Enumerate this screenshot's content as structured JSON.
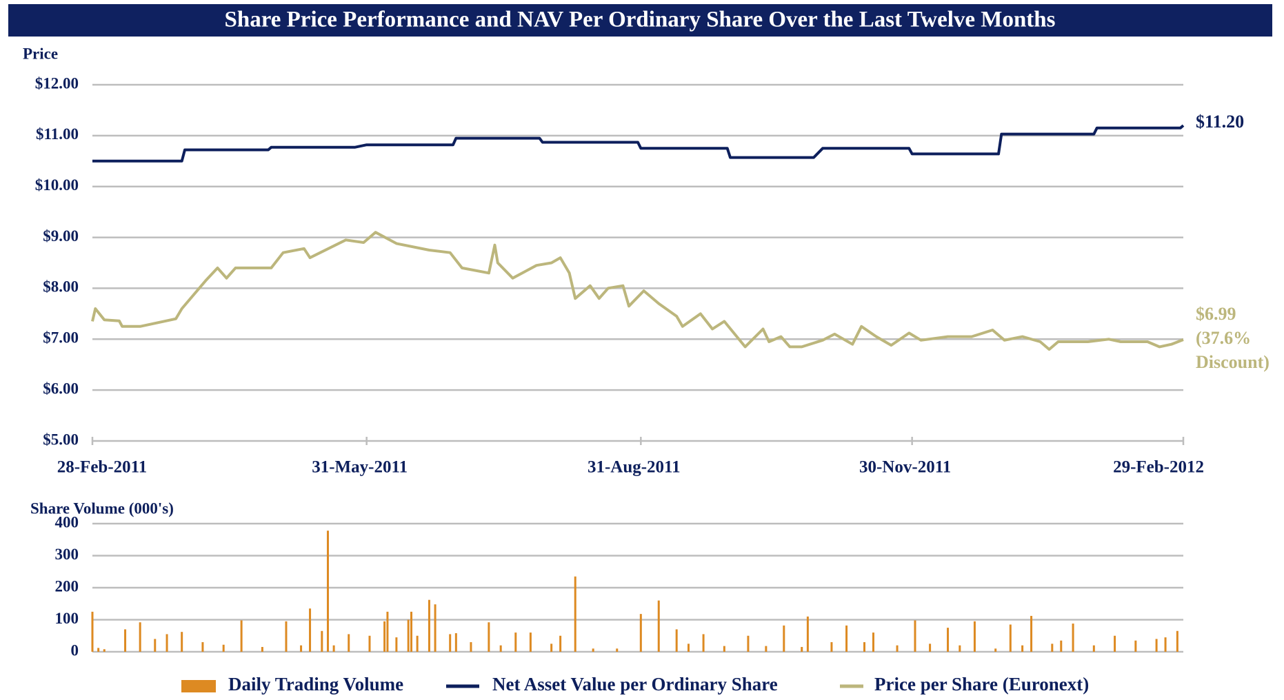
{
  "chart_data": [
    {
      "type": "line",
      "title": "Share Price Performance and NAV Per Ordinary Share Over the Last Twelve Months",
      "ylabel": "Price",
      "xlim": [
        "2011-02-28",
        "2012-02-29"
      ],
      "xticks": [
        {
          "value": "2011-02-28",
          "label": "28-Feb-2011"
        },
        {
          "value": "2011-05-31",
          "label": "31-May-2011"
        },
        {
          "value": "2011-08-31",
          "label": "31-Aug-2011"
        },
        {
          "value": "2011-11-30",
          "label": "30-Nov-2011"
        },
        {
          "value": "2012-02-29",
          "label": "29-Feb-2012"
        }
      ],
      "ylim": [
        5,
        12
      ],
      "yticks": [
        {
          "value": 5,
          "label": "$5.00"
        },
        {
          "value": 6,
          "label": "$6.00"
        },
        {
          "value": 7,
          "label": "$7.00"
        },
        {
          "value": 8,
          "label": "$8.00"
        },
        {
          "value": 9,
          "label": "$9.00"
        },
        {
          "value": 10,
          "label": "$10.00"
        },
        {
          "value": 11,
          "label": "$11.00"
        },
        {
          "value": 12,
          "label": "$12.00"
        }
      ],
      "grid": true,
      "series": [
        {
          "name": "Net Asset Value per Ordinary Share",
          "color": "#0d1f5c",
          "end_label": "$11.20",
          "x": [
            "2011-02-28",
            "2011-03-30",
            "2011-03-31",
            "2011-04-28",
            "2011-04-29",
            "2011-05-27",
            "2011-05-31",
            "2011-06-29",
            "2011-06-30",
            "2011-07-28",
            "2011-07-29",
            "2011-08-30",
            "2011-08-31",
            "2011-09-29",
            "2011-09-30",
            "2011-10-28",
            "2011-10-31",
            "2011-11-29",
            "2011-11-30",
            "2011-12-29",
            "2011-12-30",
            "2012-01-30",
            "2012-01-31",
            "2012-02-28",
            "2012-02-29"
          ],
          "values": [
            10.5,
            10.5,
            10.72,
            10.72,
            10.77,
            10.77,
            10.82,
            10.82,
            10.95,
            10.95,
            10.87,
            10.87,
            10.75,
            10.75,
            10.57,
            10.57,
            10.75,
            10.75,
            10.64,
            10.64,
            11.03,
            11.03,
            11.15,
            11.15,
            11.2
          ]
        },
        {
          "name": "Price per Share (Euronext)",
          "color": "#bcb67c",
          "end_label": [
            "$6.99",
            "(37.6%",
            "Discount)"
          ],
          "x": [
            "2011-02-28",
            "2011-03-01",
            "2011-03-04",
            "2011-03-09",
            "2011-03-10",
            "2011-03-16",
            "2011-03-24",
            "2011-03-28",
            "2011-03-30",
            "2011-04-07",
            "2011-04-11",
            "2011-04-14",
            "2011-04-17",
            "2011-04-29",
            "2011-05-03",
            "2011-05-10",
            "2011-05-12",
            "2011-05-24",
            "2011-05-30",
            "2011-06-03",
            "2011-06-10",
            "2011-06-21",
            "2011-06-28",
            "2011-07-02",
            "2011-07-11",
            "2011-07-13",
            "2011-07-14",
            "2011-07-19",
            "2011-07-27",
            "2011-08-01",
            "2011-08-04",
            "2011-08-07",
            "2011-08-09",
            "2011-08-14",
            "2011-08-17",
            "2011-08-20",
            "2011-08-25",
            "2011-08-27",
            "2011-09-01",
            "2011-09-06",
            "2011-09-12",
            "2011-09-14",
            "2011-09-20",
            "2011-09-24",
            "2011-09-28",
            "2011-10-05",
            "2011-10-11",
            "2011-10-13",
            "2011-10-17",
            "2011-10-20",
            "2011-10-24",
            "2011-10-31",
            "2011-11-04",
            "2011-11-10",
            "2011-11-13",
            "2011-11-18",
            "2011-11-23",
            "2011-11-29",
            "2011-12-03",
            "2011-12-12",
            "2011-12-20",
            "2011-12-27",
            "2011-12-31",
            "2012-01-06",
            "2012-01-12",
            "2012-01-15",
            "2012-01-18",
            "2012-01-28",
            "2012-02-04",
            "2012-02-08",
            "2012-02-17",
            "2012-02-21",
            "2012-02-25",
            "2012-02-29"
          ],
          "values": [
            7.35,
            7.6,
            7.38,
            7.36,
            7.25,
            7.25,
            7.35,
            7.4,
            7.6,
            8.15,
            8.4,
            8.2,
            8.4,
            8.4,
            8.7,
            8.78,
            8.6,
            8.95,
            8.9,
            9.1,
            8.88,
            8.75,
            8.7,
            8.4,
            8.3,
            8.85,
            8.5,
            8.2,
            8.45,
            8.5,
            8.6,
            8.3,
            7.8,
            8.05,
            7.8,
            8.0,
            8.05,
            7.65,
            7.95,
            7.7,
            7.45,
            7.25,
            7.5,
            7.2,
            7.35,
            6.85,
            7.2,
            6.95,
            7.05,
            6.85,
            6.85,
            6.98,
            7.1,
            6.9,
            7.25,
            7.05,
            6.88,
            7.12,
            6.98,
            7.05,
            7.05,
            7.18,
            6.98,
            7.05,
            6.95,
            6.8,
            6.95,
            6.95,
            7.0,
            6.95,
            6.95,
            6.85,
            6.9,
            6.99
          ]
        }
      ]
    },
    {
      "type": "bar",
      "ylabel": "Share Volume (000's)",
      "xlim": [
        "2011-02-28",
        "2012-02-29"
      ],
      "ylim": [
        0,
        400
      ],
      "yticks": [
        0,
        100,
        200,
        300,
        400
      ],
      "grid": true,
      "series": [
        {
          "name": "Daily Trading Volume",
          "color": "#dd8a22",
          "x": [
            "2011-02-28",
            "2011-03-02",
            "2011-03-04",
            "2011-03-11",
            "2011-03-16",
            "2011-03-21",
            "2011-03-25",
            "2011-03-30",
            "2011-04-06",
            "2011-04-13",
            "2011-04-19",
            "2011-04-26",
            "2011-05-04",
            "2011-05-09",
            "2011-05-12",
            "2011-05-16",
            "2011-05-18",
            "2011-05-20",
            "2011-05-25",
            "2011-06-01",
            "2011-06-06",
            "2011-06-07",
            "2011-06-10",
            "2011-06-14",
            "2011-06-15",
            "2011-06-17",
            "2011-06-21",
            "2011-06-23",
            "2011-06-28",
            "2011-06-30",
            "2011-07-05",
            "2011-07-11",
            "2011-07-15",
            "2011-07-20",
            "2011-07-25",
            "2011-08-01",
            "2011-08-04",
            "2011-08-09",
            "2011-08-15",
            "2011-08-23",
            "2011-08-31",
            "2011-09-06",
            "2011-09-12",
            "2011-09-16",
            "2011-09-21",
            "2011-09-28",
            "2011-10-06",
            "2011-10-12",
            "2011-10-18",
            "2011-10-24",
            "2011-10-26",
            "2011-11-03",
            "2011-11-08",
            "2011-11-14",
            "2011-11-17",
            "2011-11-25",
            "2011-12-01",
            "2011-12-06",
            "2011-12-12",
            "2011-12-16",
            "2011-12-21",
            "2011-12-28",
            "2012-01-02",
            "2012-01-06",
            "2012-01-09",
            "2012-01-16",
            "2012-01-19",
            "2012-01-23",
            "2012-01-30",
            "2012-02-06",
            "2012-02-13",
            "2012-02-20",
            "2012-02-23",
            "2012-02-27"
          ],
          "values": [
            125,
            12,
            8,
            70,
            92,
            40,
            55,
            62,
            30,
            22,
            98,
            15,
            95,
            20,
            135,
            65,
            378,
            20,
            55,
            50,
            95,
            125,
            45,
            100,
            125,
            50,
            162,
            148,
            55,
            58,
            30,
            92,
            20,
            60,
            60,
            25,
            50,
            235,
            10,
            10,
            118,
            160,
            70,
            25,
            55,
            18,
            50,
            18,
            82,
            15,
            110,
            30,
            82,
            30,
            60,
            20,
            98,
            25,
            75,
            20,
            95,
            10,
            85,
            20,
            112,
            25,
            35,
            88,
            20,
            50,
            35,
            40,
            45,
            65
          ]
        }
      ]
    }
  ]
}
